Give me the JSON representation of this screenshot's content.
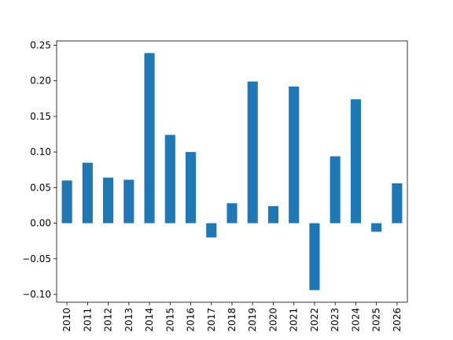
{
  "chart_data": {
    "type": "bar",
    "categories": [
      "2010",
      "2011",
      "2012",
      "2013",
      "2014",
      "2015",
      "2016",
      "2017",
      "2018",
      "2019",
      "2020",
      "2021",
      "2022",
      "2023",
      "2024",
      "2025",
      "2026"
    ],
    "values": [
      0.06,
      0.085,
      0.064,
      0.061,
      0.239,
      0.124,
      0.1,
      -0.02,
      0.028,
      0.199,
      0.024,
      0.192,
      -0.094,
      0.094,
      0.174,
      -0.012,
      0.056
    ],
    "color": "#1f77b4",
    "ylim": [
      -0.111,
      0.256
    ],
    "yticks": [
      {
        "value": -0.1,
        "label": "−0.10"
      },
      {
        "value": -0.05,
        "label": "−0.05"
      },
      {
        "value": 0,
        "label": "0.00"
      },
      0.05,
      {
        "value": 0.1,
        "label": "0.10"
      },
      0.15,
      {
        "value": 0.2,
        "label": "0.20"
      },
      0.25
    ],
    "grid": false
  }
}
